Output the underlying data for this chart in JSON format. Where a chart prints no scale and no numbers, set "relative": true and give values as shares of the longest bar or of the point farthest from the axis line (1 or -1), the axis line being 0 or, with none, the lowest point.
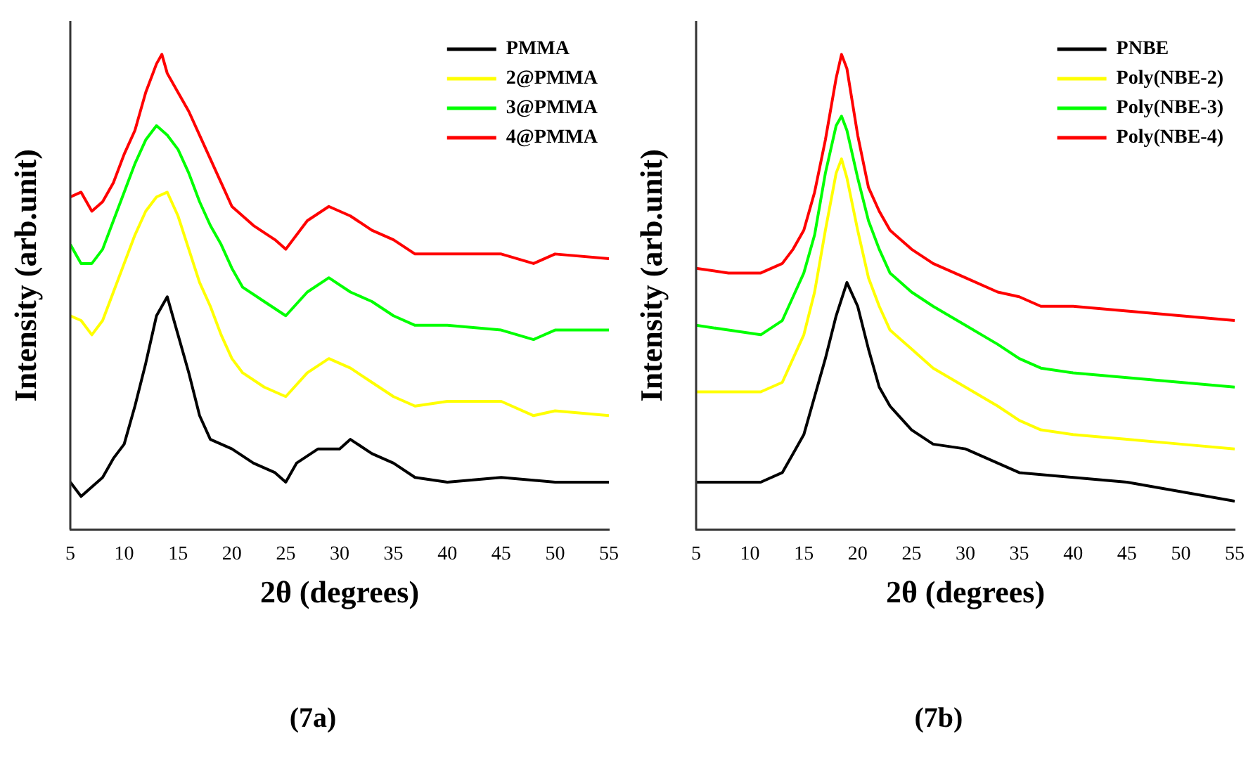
{
  "chart_data": [
    {
      "type": "line",
      "relative": true,
      "xlabel": "2θ (degrees)",
      "ylabel": "Intensity (arb.unit)",
      "xlim": [
        5,
        55
      ],
      "xticks": [
        5,
        10,
        15,
        20,
        25,
        30,
        35,
        40,
        45,
        50,
        55
      ],
      "legend": "top right",
      "marker": "none",
      "annotations": [
        "(7a)"
      ],
      "series": [
        {
          "name": "PMMA",
          "color": "#000000",
          "x": [
            5,
            6,
            7,
            8,
            9,
            10,
            11,
            12,
            13,
            14,
            15,
            16,
            17,
            18,
            20,
            22,
            24,
            25,
            26,
            28,
            30,
            31,
            33,
            35,
            37,
            40,
            45,
            50,
            55
          ],
          "values": [
            0.1,
            0.07,
            0.09,
            0.11,
            0.15,
            0.18,
            0.26,
            0.35,
            0.45,
            0.49,
            0.41,
            0.33,
            0.24,
            0.19,
            0.17,
            0.14,
            0.12,
            0.1,
            0.14,
            0.17,
            0.17,
            0.19,
            0.16,
            0.14,
            0.11,
            0.1,
            0.11,
            0.1,
            0.1
          ]
        },
        {
          "name": "2@PMMA",
          "color": "#ffff00",
          "x": [
            5,
            6,
            7,
            8,
            9,
            10,
            11,
            12,
            13,
            14,
            15,
            16,
            17,
            18,
            19,
            20,
            21,
            23,
            25,
            27,
            29,
            31,
            33,
            35,
            37,
            40,
            45,
            48,
            50,
            55
          ],
          "values": [
            0.45,
            0.44,
            0.41,
            0.44,
            0.5,
            0.56,
            0.62,
            0.67,
            0.7,
            0.71,
            0.66,
            0.59,
            0.52,
            0.47,
            0.41,
            0.36,
            0.33,
            0.3,
            0.28,
            0.33,
            0.36,
            0.34,
            0.31,
            0.28,
            0.26,
            0.27,
            0.27,
            0.24,
            0.25,
            0.24
          ]
        },
        {
          "name": "3@PMMA",
          "color": "#00ff00",
          "x": [
            5,
            6,
            7,
            8,
            9,
            10,
            11,
            12,
            13,
            14,
            15,
            16,
            17,
            18,
            19,
            20,
            21,
            23,
            25,
            27,
            29,
            31,
            33,
            35,
            37,
            40,
            45,
            48,
            50,
            55
          ],
          "values": [
            0.6,
            0.56,
            0.56,
            0.59,
            0.65,
            0.71,
            0.77,
            0.82,
            0.85,
            0.83,
            0.8,
            0.75,
            0.69,
            0.64,
            0.6,
            0.55,
            0.51,
            0.48,
            0.45,
            0.5,
            0.53,
            0.5,
            0.48,
            0.45,
            0.43,
            0.43,
            0.42,
            0.4,
            0.42,
            0.42
          ]
        },
        {
          "name": "4@PMMA",
          "color": "#ff0000",
          "x": [
            5,
            6,
            7,
            8,
            9,
            10,
            11,
            12,
            13,
            13.5,
            14,
            15,
            16,
            17,
            18,
            19,
            20,
            22,
            24,
            25,
            27,
            29,
            31,
            33,
            35,
            37,
            40,
            45,
            48,
            50,
            55
          ],
          "values": [
            0.7,
            0.71,
            0.67,
            0.69,
            0.73,
            0.79,
            0.84,
            0.92,
            0.98,
            1.0,
            0.96,
            0.92,
            0.88,
            0.83,
            0.78,
            0.73,
            0.68,
            0.64,
            0.61,
            0.59,
            0.65,
            0.68,
            0.66,
            0.63,
            0.61,
            0.58,
            0.58,
            0.58,
            0.56,
            0.58,
            0.57
          ]
        }
      ]
    },
    {
      "type": "line",
      "relative": true,
      "xlabel": "2θ (degrees)",
      "ylabel": "Intensity (arb.unit)",
      "xlim": [
        5,
        55
      ],
      "xticks": [
        5,
        10,
        15,
        20,
        25,
        30,
        35,
        40,
        45,
        50,
        55
      ],
      "legend": "top right",
      "marker": "none",
      "annotations": [
        "(7b)"
      ],
      "series": [
        {
          "name": "PNBE",
          "color": "#000000",
          "x": [
            5,
            8,
            11,
            13,
            14,
            15,
            16,
            17,
            18,
            19,
            20,
            21,
            22,
            23,
            25,
            27,
            30,
            33,
            35,
            40,
            45,
            50,
            55
          ],
          "values": [
            0.1,
            0.1,
            0.1,
            0.12,
            0.16,
            0.2,
            0.28,
            0.36,
            0.45,
            0.52,
            0.47,
            0.38,
            0.3,
            0.26,
            0.21,
            0.18,
            0.17,
            0.14,
            0.12,
            0.11,
            0.1,
            0.08,
            0.06
          ]
        },
        {
          "name": "Poly(NBE-2)",
          "color": "#ffff00",
          "x": [
            5,
            8,
            11,
            13,
            14,
            15,
            16,
            17,
            18,
            18.5,
            19,
            20,
            21,
            22,
            23,
            25,
            27,
            30,
            33,
            35,
            37,
            40,
            45,
            50,
            55
          ],
          "values": [
            0.29,
            0.29,
            0.29,
            0.31,
            0.36,
            0.41,
            0.5,
            0.63,
            0.75,
            0.78,
            0.74,
            0.63,
            0.53,
            0.47,
            0.42,
            0.38,
            0.34,
            0.3,
            0.26,
            0.23,
            0.21,
            0.2,
            0.19,
            0.18,
            0.17
          ]
        },
        {
          "name": "Poly(NBE-3)",
          "color": "#00ff00",
          "x": [
            5,
            8,
            11,
            13,
            14,
            15,
            16,
            17,
            18,
            18.5,
            19,
            20,
            21,
            22,
            23,
            25,
            27,
            30,
            33,
            35,
            37,
            40,
            45,
            50,
            55
          ],
          "values": [
            0.43,
            0.42,
            0.41,
            0.44,
            0.49,
            0.54,
            0.62,
            0.75,
            0.85,
            0.87,
            0.84,
            0.74,
            0.65,
            0.59,
            0.54,
            0.5,
            0.47,
            0.43,
            0.39,
            0.36,
            0.34,
            0.33,
            0.32,
            0.31,
            0.3
          ]
        },
        {
          "name": "Poly(NBE-4)",
          "color": "#ff0000",
          "x": [
            5,
            8,
            11,
            13,
            14,
            15,
            16,
            17,
            18,
            18.5,
            19,
            20,
            21,
            22,
            23,
            25,
            27,
            30,
            33,
            35,
            37,
            40,
            45,
            50,
            55
          ],
          "values": [
            0.55,
            0.54,
            0.54,
            0.56,
            0.59,
            0.63,
            0.71,
            0.82,
            0.95,
            1.0,
            0.97,
            0.83,
            0.72,
            0.67,
            0.63,
            0.59,
            0.56,
            0.53,
            0.5,
            0.49,
            0.47,
            0.47,
            0.46,
            0.45,
            0.44
          ]
        }
      ]
    }
  ]
}
